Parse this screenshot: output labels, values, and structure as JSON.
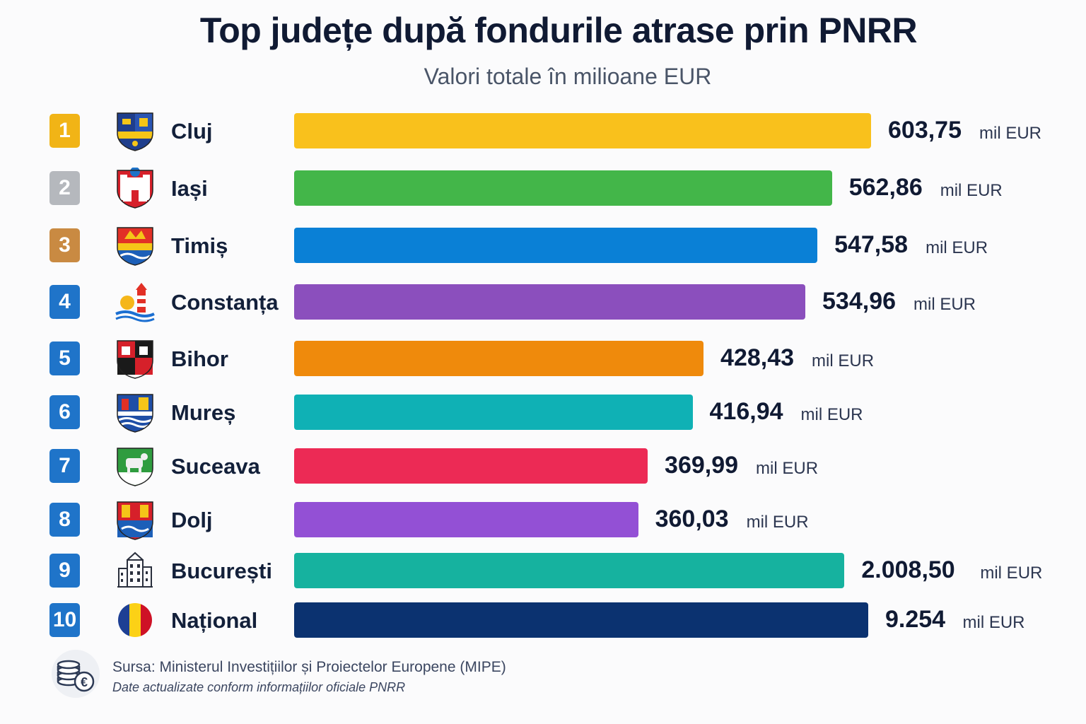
{
  "title": "Top județe după fondurile atrase prin PNRR",
  "subtitle": "Valori totale în milioane EUR",
  "unit_label": "mil EUR",
  "chart_data": {
    "type": "bar",
    "orientation": "horizontal",
    "title": "Top județe după fondurile atrase prin PNRR",
    "subtitle": "Valori totale în milioane EUR",
    "categories": [
      "Cluj",
      "Iași",
      "Timiș",
      "Constanța",
      "Bihor",
      "Mureș",
      "Suceava",
      "Dolj",
      "București",
      "Național"
    ],
    "ranks": [
      "1",
      "2",
      "3",
      "4",
      "5",
      "6",
      "7",
      "8",
      "9",
      "10"
    ],
    "values": [
      603.75,
      562.86,
      547.58,
      534.96,
      428.43,
      416.94,
      369.99,
      360.03,
      2008.5,
      9254
    ],
    "value_labels": [
      "603,75",
      "562,86",
      "547,58",
      "534,96",
      "428,43",
      "416,94",
      "369,99",
      "360,03",
      "2.008,50",
      "9.254"
    ],
    "bar_colors": [
      "#f9c11c",
      "#43b649",
      "#0a80d6",
      "#8b4fbd",
      "#ef8a0c",
      "#0fb1b5",
      "#ec2a55",
      "#9350d5",
      "#16b29f",
      "#0b3270"
    ],
    "rank_colors": [
      "#f1b416",
      "#b5b8bd",
      "#c98a42",
      "#1f74c9",
      "#1f74c9",
      "#1f74c9",
      "#1f74c9",
      "#1f74c9",
      "#1f74c9",
      "#1f74c9"
    ],
    "icons": [
      "cluj-crest-icon",
      "iasi-crest-icon",
      "timis-crest-icon",
      "constanta-lighthouse-icon",
      "bihor-crest-icon",
      "mures-crest-icon",
      "suceava-crest-icon",
      "dolj-crest-icon",
      "bucuresti-buildings-icon",
      "romania-flag-icon"
    ],
    "legend": "none",
    "grid": false
  },
  "footer": {
    "source": "Sursa: Ministerul Investițiilor și Proiectelor Europene (MIPE)",
    "note": "Date actualizate conform informațiilor oficiale PNRR",
    "icon": "coins-euro-icon"
  }
}
